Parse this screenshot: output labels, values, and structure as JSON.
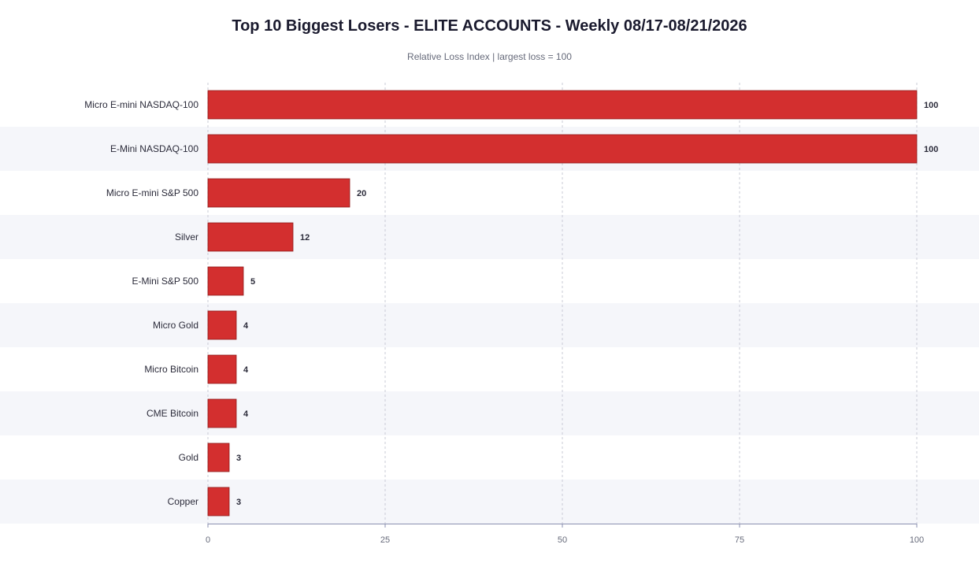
{
  "chart_data": {
    "type": "bar",
    "orientation": "horizontal",
    "title": "Top 10 Biggest Losers - ELITE ACCOUNTS - Weekly 08/17-08/21/2026",
    "subtitle": "Relative Loss Index  |  largest loss = 100",
    "categories": [
      "Micro E-mini NASDAQ-100",
      "E-Mini NASDAQ-100",
      "Micro E-mini S&P 500",
      "Silver",
      "E-Mini S&P 500",
      "Micro Gold",
      "Micro Bitcoin",
      "CME Bitcoin",
      "Gold",
      "Copper"
    ],
    "values": [
      100,
      100,
      20,
      12,
      5,
      4,
      4,
      4,
      3,
      3
    ],
    "xlim": [
      0,
      100
    ],
    "xticks": [
      0,
      25,
      50,
      75,
      100
    ],
    "grid": true,
    "colors": {
      "bar": "#d32f2f",
      "bar_stroke": "#8e1c1c",
      "row_alt": "#f5f6fa",
      "grid": "#c9cbd6",
      "axis": "#8a8fb0",
      "label": "#2b2b3a",
      "tick": "#666a7a"
    }
  }
}
